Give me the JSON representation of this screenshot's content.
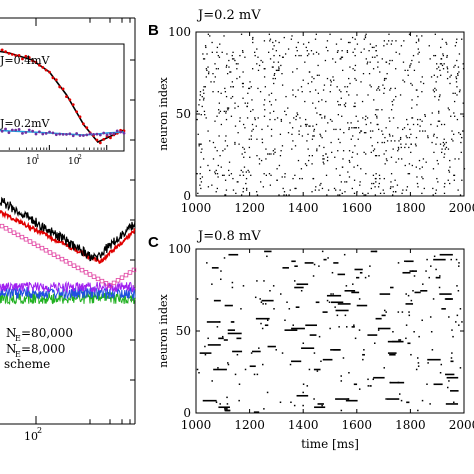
{
  "chart_data": [
    {
      "type": "line",
      "panel": "inset (cropped, left)",
      "annotations": [
        "J=0.4mV",
        "J=0.2mV"
      ],
      "xscale": "log",
      "xticks": [
        "10",
        "10"
      ],
      "xtick_exponents": [
        "1",
        "2"
      ],
      "series": [
        {
          "name": "J=0.4mV",
          "x": [
            1,
            2,
            5,
            10,
            20,
            40,
            70,
            100,
            200
          ],
          "values": [
            1.0,
            0.97,
            0.9,
            0.78,
            0.55,
            0.25,
            0.08,
            0.12,
            0.2
          ],
          "colors": [
            "#000000",
            "#e00000"
          ]
        },
        {
          "name": "J=0.2mV",
          "x": [
            1,
            2,
            5,
            10,
            20,
            40,
            70,
            100,
            200
          ],
          "values": [
            0.2,
            0.19,
            0.18,
            0.17,
            0.16,
            0.15,
            0.16,
            0.17,
            0.18
          ],
          "colors": [
            "#20a0e0",
            "#7030a0"
          ]
        }
      ],
      "grid": false
    },
    {
      "type": "line",
      "panel": "main (cropped, left)",
      "annotations": [
        "N",
        "=80,000",
        "N",
        "=8,000",
        "scheme"
      ],
      "annotation_subscripts": [
        "E",
        "E"
      ],
      "xscale": "log",
      "xticks": [
        "10"
      ],
      "xtick_exponents": [
        "2"
      ],
      "colors": {
        "black": "#000000",
        "red": "#e00000",
        "pink": "#e040a0",
        "magenta": "#a020f0",
        "blue": "#2050e0",
        "green": "#20b020"
      },
      "grid": false
    },
    {
      "type": "scatter",
      "panel": "B",
      "title": "J=0.2 mV",
      "ylabel": "neuron index",
      "xlim": [
        1000,
        2000
      ],
      "ylim": [
        0,
        100
      ],
      "xticks": [
        1000,
        1200,
        1400,
        1600,
        1800,
        2000
      ],
      "yticks": [
        0,
        50,
        100
      ],
      "pattern": "asynchronous irregular, sparse isolated spikes",
      "grid": false
    },
    {
      "type": "scatter",
      "panel": "C",
      "title": "J=0.8 mV",
      "ylabel": "neuron index",
      "xlabel": "time [ms]",
      "xlim": [
        1000,
        2000
      ],
      "ylim": [
        0,
        100
      ],
      "xticks": [
        1000,
        1200,
        1400,
        1600,
        1800,
        2000
      ],
      "yticks": [
        0,
        50,
        100
      ],
      "pattern": "bursty, horizontal spike trains",
      "grid": false
    }
  ],
  "panel_labels": {
    "B": "B",
    "C": "C"
  }
}
